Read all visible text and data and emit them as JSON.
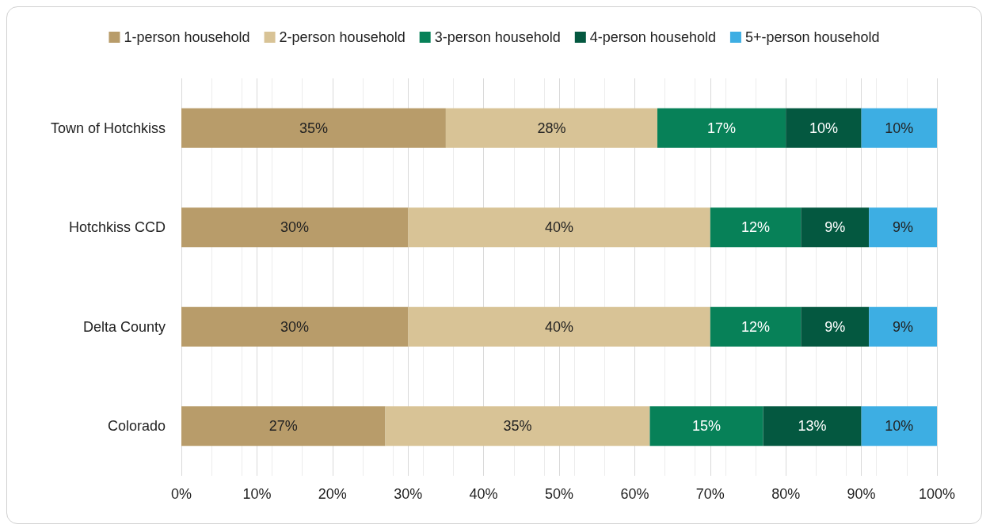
{
  "chart_data": {
    "type": "bar",
    "orientation": "horizontal",
    "stacked": true,
    "categories": [
      "Town of Hotchkiss",
      "Hotchkiss CCD",
      "Delta County",
      "Colorado"
    ],
    "series": [
      {
        "name": "1-person household",
        "color": "#b89c6a",
        "values": [
          35,
          30,
          30,
          27
        ],
        "value_labels": [
          "35%",
          "30%",
          "30%",
          "27%"
        ]
      },
      {
        "name": "2-person household",
        "color": "#d8c396",
        "values": [
          28,
          40,
          40,
          35
        ],
        "value_labels": [
          "28%",
          "40%",
          "40%",
          "35%"
        ]
      },
      {
        "name": "3-person household",
        "color": "#078158",
        "values": [
          17,
          12,
          12,
          15
        ],
        "value_labels": [
          "17%",
          "12%",
          "12%",
          "15%"
        ]
      },
      {
        "name": "4-person household",
        "color": "#045840",
        "values": [
          10,
          9,
          9,
          13
        ],
        "value_labels": [
          "10%",
          "9%",
          "9%",
          "13%"
        ]
      },
      {
        "name": "5+-person household",
        "color": "#3daee3",
        "values": [
          10,
          9,
          9,
          10
        ],
        "value_labels": [
          "10%",
          "9%",
          "9%",
          "10%"
        ]
      }
    ],
    "xlim": [
      0,
      100
    ],
    "xticks": [
      {
        "value": 0,
        "label": "0%"
      },
      {
        "value": 10,
        "label": "10%"
      },
      {
        "value": 20,
        "label": "20%"
      },
      {
        "value": 30,
        "label": "30%"
      },
      {
        "value": 40,
        "label": "40%"
      },
      {
        "value": 50,
        "label": "50%"
      },
      {
        "value": 60,
        "label": "60%"
      },
      {
        "value": 70,
        "label": "70%"
      },
      {
        "value": 80,
        "label": "80%"
      },
      {
        "value": 90,
        "label": "90%"
      },
      {
        "value": 100,
        "label": "100%"
      }
    ],
    "grid": "x",
    "legend": "top"
  }
}
